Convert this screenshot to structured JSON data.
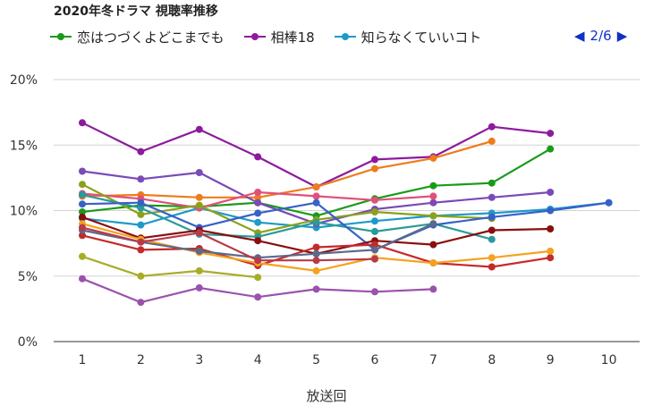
{
  "title": "2020年冬ドラマ 視聴率推移",
  "legend": [
    {
      "name": "恋はつづくよどこまでも",
      "color": "#1a9a1a"
    },
    {
      "name": "相棒18",
      "color": "#8e1a9e"
    },
    {
      "name": "知らなくていいコト",
      "color": "#1e9ac8"
    }
  ],
  "pager": {
    "prev": "◀",
    "text": "2/6",
    "next": "▶"
  },
  "chart_data": {
    "type": "line",
    "xlabel": "放送回",
    "ylabel": "",
    "x": [
      1,
      2,
      3,
      4,
      5,
      6,
      7,
      8,
      9,
      10
    ],
    "x_ticks": [
      "1",
      "2",
      "3",
      "4",
      "5",
      "6",
      "7",
      "8",
      "9",
      "10"
    ],
    "ylim": [
      0,
      20
    ],
    "y_ticks": [
      "0%",
      "5%",
      "10%",
      "15%",
      "20%"
    ],
    "grid": true,
    "legend_position": "top",
    "series": [
      {
        "name": "恋はつづくよどこまでも",
        "color": "#1a9a1a",
        "values": [
          9.9,
          10.4,
          10.3,
          10.6,
          9.6,
          10.9,
          11.9,
          12.1,
          14.7,
          null
        ]
      },
      {
        "name": "相棒18",
        "color": "#8e1a9e",
        "values": [
          16.7,
          14.5,
          16.2,
          14.1,
          11.8,
          13.9,
          14.1,
          16.4,
          15.9,
          null
        ]
      },
      {
        "name": "知らなくていいコト",
        "color": "#1e9ac8",
        "values": [
          9.4,
          8.9,
          10.2,
          9.1,
          8.7,
          9.2,
          9.6,
          9.8,
          10.1,
          10.6
        ]
      },
      {
        "color": "#ee7c1a",
        "values": [
          11.1,
          11.2,
          11.0,
          11.0,
          11.8,
          13.2,
          14.0,
          15.3,
          null,
          null
        ]
      },
      {
        "color": "#7a4ab8",
        "values": [
          13.0,
          12.4,
          12.9,
          10.6,
          9.0,
          10.1,
          10.6,
          11.0,
          11.4,
          null
        ]
      },
      {
        "color": "#e0507a",
        "values": [
          11.3,
          10.9,
          10.2,
          11.4,
          11.1,
          10.8,
          11.1,
          null,
          null,
          null
        ]
      },
      {
        "color": "#8aa21a",
        "values": [
          12.0,
          9.7,
          10.4,
          8.3,
          9.3,
          9.9,
          9.6,
          9.4,
          null,
          null
        ]
      },
      {
        "color": "#2a9a9a",
        "values": [
          11.2,
          10.2,
          8.2,
          8.0,
          9.1,
          8.4,
          9.0,
          7.8,
          null,
          null
        ]
      },
      {
        "color": "#3860c8",
        "values": [
          10.5,
          10.6,
          8.7,
          9.8,
          10.6,
          7.0,
          8.9,
          9.5,
          10.0,
          10.6
        ]
      },
      {
        "color": "#8a0f0f",
        "values": [
          9.5,
          7.9,
          8.5,
          7.7,
          6.7,
          7.7,
          7.4,
          8.5,
          8.6,
          null
        ]
      },
      {
        "color": "#c42a2a",
        "values": [
          8.1,
          7.0,
          7.1,
          5.8,
          7.2,
          7.4,
          6.0,
          5.7,
          6.4,
          null
        ]
      },
      {
        "color": "#f5a21e",
        "values": [
          9.0,
          7.8,
          6.8,
          6.0,
          5.4,
          6.4,
          6.0,
          6.4,
          6.9,
          null
        ]
      },
      {
        "color": "#a8ad28",
        "values": [
          6.5,
          5.0,
          5.4,
          4.9,
          null,
          null,
          null,
          null,
          null,
          null
        ]
      },
      {
        "color": "#9a52ad",
        "values": [
          4.8,
          3.0,
          4.1,
          3.4,
          4.0,
          3.8,
          4.0,
          null,
          null,
          null
        ]
      },
      {
        "color": "#5a6a8a",
        "values": [
          8.5,
          7.6,
          6.9,
          6.4,
          6.7,
          7.0,
          9.0,
          null,
          null,
          null
        ]
      },
      {
        "color": "#b83a4a",
        "values": [
          8.7,
          7.6,
          8.3,
          6.2,
          6.2,
          6.3,
          null,
          null,
          null,
          null
        ]
      }
    ]
  }
}
